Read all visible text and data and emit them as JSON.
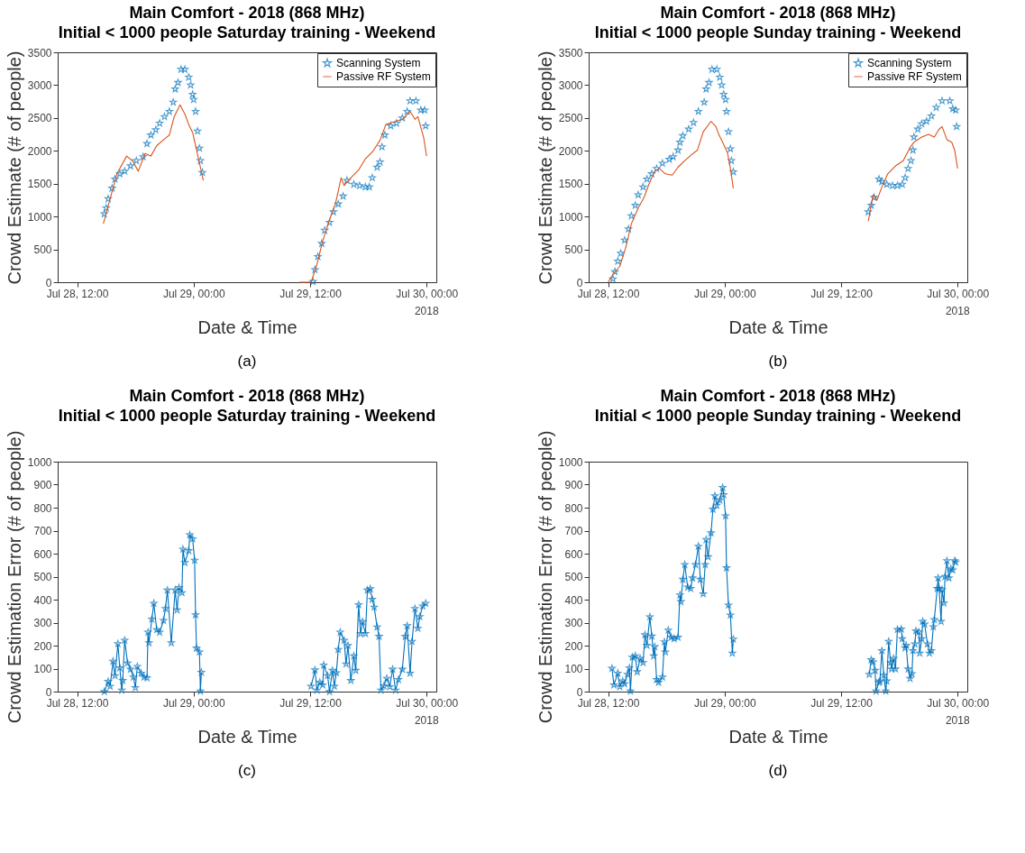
{
  "chart_data": [
    {
      "type": "line",
      "title": "Main Comfort - 2018 (868 MHz)",
      "subtitle": "Initial < 1000 people Saturday training - Weekend",
      "xlabel": "Date & Time",
      "ylabel": "Crowd Estimate (# of people)",
      "annotations": [
        "2018",
        "(a)"
      ],
      "xlim": [
        "2018-07-28T10:00",
        "2018-07-30T01:00"
      ],
      "xticks": [
        {
          "value": "2018-07-28T12:00",
          "label": "Jul 28, 12:00"
        },
        {
          "value": "2018-07-29T00:00",
          "label": "Jul 29, 00:00"
        },
        {
          "value": "2018-07-29T12:00",
          "label": "Jul 29, 12:00"
        },
        {
          "value": "2018-07-30T00:00",
          "label": "Jul 30, 00:00"
        }
      ],
      "ylim": [
        0,
        3500
      ],
      "yticks": [
        0,
        500,
        1000,
        1500,
        2000,
        2500,
        3000,
        3500
      ],
      "legend": "top right",
      "marker": "star",
      "series": [
        {
          "name": "Scanning System",
          "type": "scatter",
          "color": "#0072bd",
          "x": [
            "2018-07-28T14:48",
            "2018-07-28T15:00",
            "2018-07-28T15:12",
            "2018-07-28T15:36",
            "2018-07-28T15:54",
            "2018-07-28T16:24",
            "2018-07-28T16:54",
            "2018-07-28T17:30",
            "2018-07-28T18:06",
            "2018-07-28T18:48",
            "2018-07-28T19:12",
            "2018-07-28T19:36",
            "2018-07-28T20:06",
            "2018-07-28T20:30",
            "2018-07-28T21:00",
            "2018-07-28T21:30",
            "2018-07-28T21:54",
            "2018-07-28T22:06",
            "2018-07-28T22:24",
            "2018-07-28T22:42",
            "2018-07-28T23:06",
            "2018-07-28T23:30",
            "2018-07-28T23:42",
            "2018-07-28T23:54",
            "2018-07-29T00:00",
            "2018-07-29T00:12",
            "2018-07-29T00:24",
            "2018-07-29T00:36",
            "2018-07-29T00:42",
            "2018-07-29T00:54",
            "2018-07-29T06:00",
            "2018-07-29T12:18",
            "2018-07-29T12:30",
            "2018-07-29T12:48",
            "2018-07-29T13:12",
            "2018-07-29T13:30",
            "2018-07-29T14:00",
            "2018-07-29T14:24",
            "2018-07-29T14:54",
            "2018-07-29T15:24",
            "2018-07-29T15:48",
            "2018-07-29T16:30",
            "2018-07-29T17:06",
            "2018-07-29T17:42",
            "2018-07-29T18:06",
            "2018-07-29T18:24",
            "2018-07-29T18:54",
            "2018-07-29T19:12",
            "2018-07-29T19:24",
            "2018-07-29T19:42",
            "2018-07-29T20:18",
            "2018-07-29T20:54",
            "2018-07-29T21:30",
            "2018-07-29T22:00",
            "2018-07-29T22:18",
            "2018-07-29T22:54",
            "2018-07-29T23:24",
            "2018-07-29T23:48",
            "2018-07-29T23:54"
          ],
          "values": [
            1040,
            1130,
            1270,
            1430,
            1570,
            1650,
            1690,
            1770,
            1850,
            1910,
            2110,
            2240,
            2320,
            2420,
            2520,
            2600,
            2740,
            2940,
            3040,
            3240,
            3240,
            3120,
            3000,
            2860,
            2780,
            2600,
            2300,
            2040,
            1850,
            1670,
            null,
            10,
            190,
            390,
            590,
            790,
            910,
            1070,
            1190,
            1310,
            1550,
            1490,
            1470,
            1450,
            1450,
            1590,
            1750,
            1830,
            2060,
            2240,
            2380,
            2420,
            2500,
            2600,
            2760,
            2760,
            2620,
            2620,
            2380
          ]
        },
        {
          "name": "Passive RF System",
          "color": "#d95319",
          "marker": "none",
          "x": [
            "2018-07-28T14:42",
            "2018-07-28T16:06",
            "2018-07-28T17:06",
            "2018-07-28T17:42",
            "2018-07-28T18:18",
            "2018-07-28T19:00",
            "2018-07-28T19:36",
            "2018-07-28T20:12",
            "2018-07-28T21:00",
            "2018-07-28T21:30",
            "2018-07-28T22:00",
            "2018-07-28T22:36",
            "2018-07-28T23:06",
            "2018-07-28T23:30",
            "2018-07-28T23:54",
            "2018-07-29T00:12",
            "2018-07-29T00:42",
            "2018-07-29T01:00",
            "2018-07-29T06:00",
            "2018-07-29T10:54",
            "2018-07-29T12:06",
            "2018-07-29T12:42",
            "2018-07-29T13:18",
            "2018-07-29T14:00",
            "2018-07-29T14:36",
            "2018-07-29T15:12",
            "2018-07-29T15:30",
            "2018-07-29T16:12",
            "2018-07-29T17:00",
            "2018-07-29T17:42",
            "2018-07-29T18:30",
            "2018-07-29T19:12",
            "2018-07-29T19:48",
            "2018-07-29T20:36",
            "2018-07-29T21:30",
            "2018-07-29T22:18",
            "2018-07-29T22:48",
            "2018-07-29T23:06",
            "2018-07-29T23:24",
            "2018-07-29T23:42",
            "2018-07-30T00:00"
          ],
          "values": [
            890,
            1650,
            1920,
            1850,
            1690,
            1960,
            1920,
            2080,
            2180,
            2240,
            2520,
            2700,
            2560,
            2400,
            2280,
            2080,
            1750,
            1550,
            null,
            0,
            0,
            270,
            630,
            950,
            1190,
            1590,
            1470,
            1590,
            1710,
            1880,
            2000,
            2160,
            2400,
            2440,
            2480,
            2600,
            2480,
            2520,
            2360,
            2200,
            1920
          ]
        }
      ]
    },
    {
      "type": "line",
      "title": "Main Comfort - 2018 (868 MHz)",
      "subtitle": "Initial < 1000 people Sunday training - Weekend",
      "xlabel": "Date & Time",
      "ylabel": "Crowd Estimate (# of people)",
      "annotations": [
        "2018",
        "(b)"
      ],
      "xlim": [
        "2018-07-28T10:00",
        "2018-07-30T01:00"
      ],
      "xticks": [
        {
          "value": "2018-07-28T12:00",
          "label": "Jul 28, 12:00"
        },
        {
          "value": "2018-07-29T00:00",
          "label": "Jul 29, 00:00"
        },
        {
          "value": "2018-07-29T12:00",
          "label": "Jul 29, 12:00"
        },
        {
          "value": "2018-07-30T00:00",
          "label": "Jul 30, 00:00"
        }
      ],
      "ylim": [
        0,
        3500
      ],
      "yticks": [
        0,
        500,
        1000,
        1500,
        2000,
        2500,
        3000,
        3500
      ],
      "legend": "top right",
      "marker": "star",
      "series": [
        {
          "name": "Scanning System",
          "type": "scatter",
          "color": "#0072bd",
          "x": [
            "2018-07-28T12:30",
            "2018-07-28T12:42",
            "2018-07-28T13:00",
            "2018-07-28T13:18",
            "2018-07-28T13:42",
            "2018-07-28T14:06",
            "2018-07-28T14:24",
            "2018-07-28T14:48",
            "2018-07-28T15:06",
            "2018-07-28T15:36",
            "2018-07-28T16:00",
            "2018-07-28T16:30",
            "2018-07-28T17:00",
            "2018-07-28T17:36",
            "2018-07-28T18:18",
            "2018-07-28T18:42",
            "2018-07-28T19:12",
            "2018-07-28T19:24",
            "2018-07-28T19:42",
            "2018-07-28T20:18",
            "2018-07-28T20:48",
            "2018-07-28T21:18",
            "2018-07-28T21:54",
            "2018-07-28T22:06",
            "2018-07-28T22:24",
            "2018-07-28T22:42",
            "2018-07-28T23:12",
            "2018-07-28T23:30",
            "2018-07-28T23:42",
            "2018-07-28T23:54",
            "2018-07-29T00:06",
            "2018-07-29T00:12",
            "2018-07-29T00:24",
            "2018-07-29T00:36",
            "2018-07-29T00:42",
            "2018-07-29T00:54",
            "2018-07-29T06:00",
            "2018-07-29T14:48",
            "2018-07-29T15:06",
            "2018-07-29T15:24",
            "2018-07-29T15:54",
            "2018-07-29T16:12",
            "2018-07-29T16:42",
            "2018-07-29T17:18",
            "2018-07-29T17:48",
            "2018-07-29T18:18",
            "2018-07-29T18:36",
            "2018-07-29T18:54",
            "2018-07-29T19:12",
            "2018-07-29T19:24",
            "2018-07-29T19:30",
            "2018-07-29T19:54",
            "2018-07-29T20:18",
            "2018-07-29T20:48",
            "2018-07-29T21:18",
            "2018-07-29T21:48",
            "2018-07-29T22:24",
            "2018-07-29T23:12",
            "2018-07-29T23:30",
            "2018-07-29T23:48",
            "2018-07-29T23:54"
          ],
          "values": [
            50,
            160,
            320,
            440,
            640,
            810,
            1010,
            1170,
            1330,
            1450,
            1570,
            1650,
            1730,
            1810,
            1870,
            1910,
            2010,
            2130,
            2230,
            2330,
            2430,
            2600,
            2740,
            2940,
            3040,
            3240,
            3240,
            3120,
            3000,
            2860,
            2780,
            2600,
            2290,
            2030,
            1850,
            1680,
            null,
            1070,
            1170,
            1290,
            1570,
            1530,
            1490,
            1470,
            1470,
            1490,
            1590,
            1730,
            1850,
            2010,
            2210,
            2330,
            2410,
            2450,
            2530,
            2660,
            2760,
            2760,
            2640,
            2620,
            2370
          ]
        },
        {
          "name": "Passive RF System",
          "color": "#d95319",
          "marker": "none",
          "x": [
            "2018-07-28T12:00",
            "2018-07-28T12:30",
            "2018-07-28T13:12",
            "2018-07-28T13:48",
            "2018-07-28T14:24",
            "2018-07-28T15:06",
            "2018-07-28T15:42",
            "2018-07-28T16:12",
            "2018-07-28T16:48",
            "2018-07-28T17:18",
            "2018-07-28T17:54",
            "2018-07-28T18:36",
            "2018-07-28T19:12",
            "2018-07-28T19:54",
            "2018-07-28T20:30",
            "2018-07-28T21:12",
            "2018-07-28T21:48",
            "2018-07-28T22:36",
            "2018-07-28T23:06",
            "2018-07-28T23:24",
            "2018-07-28T23:48",
            "2018-07-29T00:18",
            "2018-07-29T00:36",
            "2018-07-29T00:54",
            "2018-07-29T06:00",
            "2018-07-29T14:48",
            "2018-07-29T15:18",
            "2018-07-29T15:42",
            "2018-07-29T16:12",
            "2018-07-29T16:48",
            "2018-07-29T17:36",
            "2018-07-29T18:24",
            "2018-07-29T19:06",
            "2018-07-29T19:30",
            "2018-07-29T20:18",
            "2018-07-29T21:00",
            "2018-07-29T21:36",
            "2018-07-29T22:06",
            "2018-07-29T22:24",
            "2018-07-29T22:54",
            "2018-07-29T23:24",
            "2018-07-29T23:42",
            "2018-07-30T00:00"
          ],
          "values": [
            0,
            120,
            240,
            520,
            890,
            1130,
            1290,
            1490,
            1690,
            1730,
            1650,
            1630,
            1750,
            1850,
            1930,
            2010,
            2290,
            2450,
            2370,
            2250,
            2130,
            1970,
            1730,
            1430,
            null,
            930,
            1330,
            1250,
            1450,
            1650,
            1770,
            1850,
            2050,
            2130,
            2210,
            2250,
            2210,
            2330,
            2370,
            2170,
            2130,
            2010,
            1730
          ]
        }
      ]
    },
    {
      "type": "line",
      "title": "Main Comfort - 2018 (868 MHz)",
      "subtitle": "Initial < 1000 people Saturday training - Weekend",
      "xlabel": "Date & Time",
      "ylabel": "Crowd Estimation Error (# of people)",
      "annotations": [
        "2018",
        "(c)"
      ],
      "xlim": [
        "2018-07-28T10:00",
        "2018-07-30T01:00"
      ],
      "xticks": [
        {
          "value": "2018-07-28T12:00",
          "label": "Jul 28, 12:00"
        },
        {
          "value": "2018-07-29T00:00",
          "label": "Jul 29, 00:00"
        },
        {
          "value": "2018-07-29T12:00",
          "label": "Jul 29, 12:00"
        },
        {
          "value": "2018-07-30T00:00",
          "label": "Jul 30, 00:00"
        }
      ],
      "ylim": [
        0,
        1000
      ],
      "yticks": [
        0,
        100,
        200,
        300,
        400,
        500,
        600,
        700,
        800,
        900,
        1000
      ],
      "marker": "star",
      "series": [
        {
          "color": "#0072bd",
          "x": [
            "2018-07-28T14:48",
            "2018-07-28T15:12",
            "2018-07-28T15:24",
            "2018-07-28T15:42",
            "2018-07-28T15:54",
            "2018-07-28T16:12",
            "2018-07-28T16:24",
            "2018-07-28T16:36",
            "2018-07-28T16:42",
            "2018-07-28T16:54",
            "2018-07-28T17:12",
            "2018-07-28T17:30",
            "2018-07-28T17:48",
            "2018-07-28T18:00",
            "2018-07-28T18:12",
            "2018-07-28T18:36",
            "2018-07-28T18:54",
            "2018-07-28T19:12",
            "2018-07-28T19:18",
            "2018-07-28T19:24",
            "2018-07-28T19:42",
            "2018-07-28T19:54",
            "2018-07-28T20:12",
            "2018-07-28T20:30",
            "2018-07-28T20:54",
            "2018-07-28T21:06",
            "2018-07-28T21:18",
            "2018-07-28T21:42",
            "2018-07-28T22:06",
            "2018-07-28T22:18",
            "2018-07-28T22:30",
            "2018-07-28T22:48",
            "2018-07-28T22:54",
            "2018-07-28T23:06",
            "2018-07-28T23:30",
            "2018-07-28T23:36",
            "2018-07-28T23:54",
            "2018-07-29T00:06",
            "2018-07-29T00:12",
            "2018-07-29T00:18",
            "2018-07-29T00:36",
            "2018-07-29T00:42",
            "2018-07-29T00:48",
            "2018-07-29T06:00",
            "2018-07-29T12:06",
            "2018-07-29T12:30",
            "2018-07-29T12:42",
            "2018-07-29T13:00",
            "2018-07-29T13:18",
            "2018-07-29T13:24",
            "2018-07-29T13:48",
            "2018-07-29T14:00",
            "2018-07-29T14:18",
            "2018-07-29T14:30",
            "2018-07-29T14:42",
            "2018-07-29T14:54",
            "2018-07-29T15:06",
            "2018-07-29T15:30",
            "2018-07-29T15:42",
            "2018-07-29T15:54",
            "2018-07-29T16:12",
            "2018-07-29T16:30",
            "2018-07-29T16:42",
            "2018-07-29T17:00",
            "2018-07-29T17:12",
            "2018-07-29T17:24",
            "2018-07-29T17:42",
            "2018-07-29T17:54",
            "2018-07-29T18:12",
            "2018-07-29T18:24",
            "2018-07-29T18:36",
            "2018-07-29T18:54",
            "2018-07-29T19:06",
            "2018-07-29T19:18",
            "2018-07-29T19:36",
            "2018-07-29T19:54",
            "2018-07-29T20:12",
            "2018-07-29T20:30",
            "2018-07-29T20:48",
            "2018-07-29T21:06",
            "2018-07-29T21:30",
            "2018-07-29T21:48",
            "2018-07-29T22:00",
            "2018-07-29T22:18",
            "2018-07-29T22:30",
            "2018-07-29T22:48",
            "2018-07-29T23:06",
            "2018-07-29T23:18",
            "2018-07-29T23:36",
            "2018-07-29T23:54"
          ],
          "values": [
            0,
            44,
            23,
            132,
            69,
            208,
            103,
            6,
            48,
            223,
            124,
            97,
            63,
            17,
            109,
            80,
            63,
            60,
            258,
            212,
            315,
            384,
            269,
            258,
            309,
            361,
            441,
            212,
            441,
            355,
            452,
            430,
            619,
            561,
            613,
            682,
            664,
            571,
            334,
            189,
            172,
            2,
            84,
            null,
            23,
            94,
            6,
            40,
            29,
            115,
            69,
            0,
            92,
            23,
            82,
            183,
            258,
            223,
            120,
            200,
            48,
            155,
            92,
            378,
            252,
            304,
            252,
            441,
            447,
            401,
            367,
            281,
            240,
            6,
            25,
            57,
            21,
            97,
            6,
            52,
            97,
            240,
            286,
            80,
            218,
            361,
            275,
            326,
            372,
            384
          ]
        }
      ]
    },
    {
      "type": "line",
      "title": "Main Comfort - 2018 (868 MHz)",
      "subtitle": "Initial < 1000 people Sunday training - Weekend",
      "xlabel": "Date & Time",
      "ylabel": "Crowd Estimation Error (# of people)",
      "annotations": [
        "2018",
        "(d)"
      ],
      "xlim": [
        "2018-07-28T10:00",
        "2018-07-30T01:00"
      ],
      "xticks": [
        {
          "value": "2018-07-28T12:00",
          "label": "Jul 28, 12:00"
        },
        {
          "value": "2018-07-29T00:00",
          "label": "Jul 29, 00:00"
        },
        {
          "value": "2018-07-29T12:00",
          "label": "Jul 29, 12:00"
        },
        {
          "value": "2018-07-30T00:00",
          "label": "Jul 30, 00:00"
        }
      ],
      "ylim": [
        0,
        1000
      ],
      "yticks": [
        0,
        100,
        200,
        300,
        400,
        500,
        600,
        700,
        800,
        900,
        1000
      ],
      "marker": "star",
      "series": [
        {
          "color": "#0072bd",
          "x": [
            "2018-07-28T12:24",
            "2018-07-28T12:36",
            "2018-07-28T13:00",
            "2018-07-28T13:12",
            "2018-07-28T13:30",
            "2018-07-28T13:42",
            "2018-07-28T14:00",
            "2018-07-28T14:12",
            "2018-07-28T14:18",
            "2018-07-28T14:30",
            "2018-07-28T14:48",
            "2018-07-28T15:00",
            "2018-07-28T15:18",
            "2018-07-28T15:36",
            "2018-07-28T15:48",
            "2018-07-28T16:00",
            "2018-07-28T16:18",
            "2018-07-28T16:30",
            "2018-07-28T16:42",
            "2018-07-28T16:48",
            "2018-07-28T17:00",
            "2018-07-28T17:12",
            "2018-07-28T17:36",
            "2018-07-28T17:48",
            "2018-07-28T17:54",
            "2018-07-28T18:12",
            "2018-07-28T18:30",
            "2018-07-28T18:48",
            "2018-07-28T19:12",
            "2018-07-28T19:24",
            "2018-07-28T19:30",
            "2018-07-28T19:42",
            "2018-07-28T19:54",
            "2018-07-28T20:12",
            "2018-07-28T20:30",
            "2018-07-28T20:42",
            "2018-07-28T21:00",
            "2018-07-28T21:18",
            "2018-07-28T21:30",
            "2018-07-28T21:48",
            "2018-07-28T22:00",
            "2018-07-28T22:06",
            "2018-07-28T22:18",
            "2018-07-28T22:36",
            "2018-07-28T22:48",
            "2018-07-28T23:00",
            "2018-07-28T23:12",
            "2018-07-28T23:30",
            "2018-07-28T23:48",
            "2018-07-28T23:54",
            "2018-07-29T00:06",
            "2018-07-29T00:12",
            "2018-07-29T00:24",
            "2018-07-29T00:36",
            "2018-07-29T00:48",
            "2018-07-29T00:54",
            "2018-07-29T06:00",
            "2018-07-29T14:54",
            "2018-07-29T15:06",
            "2018-07-29T15:18",
            "2018-07-29T15:30",
            "2018-07-29T15:36",
            "2018-07-29T15:54",
            "2018-07-29T16:00",
            "2018-07-29T16:12",
            "2018-07-29T16:24",
            "2018-07-29T16:36",
            "2018-07-29T16:42",
            "2018-07-29T16:54",
            "2018-07-29T17:06",
            "2018-07-29T17:12",
            "2018-07-29T17:24",
            "2018-07-29T17:36",
            "2018-07-29T17:48",
            "2018-07-29T18:12",
            "2018-07-29T18:18",
            "2018-07-29T18:36",
            "2018-07-29T18:42",
            "2018-07-29T18:54",
            "2018-07-29T19:06",
            "2018-07-29T19:18",
            "2018-07-29T19:24",
            "2018-07-29T19:36",
            "2018-07-29T19:42",
            "2018-07-29T20:00",
            "2018-07-29T20:06",
            "2018-07-29T20:18",
            "2018-07-29T20:24",
            "2018-07-29T20:36",
            "2018-07-29T20:54",
            "2018-07-29T21:06",
            "2018-07-29T21:18",
            "2018-07-29T21:30",
            "2018-07-29T21:36",
            "2018-07-29T21:54",
            "2018-07-29T22:00",
            "2018-07-29T22:06",
            "2018-07-29T22:18",
            "2018-07-29T22:24",
            "2018-07-29T22:36",
            "2018-07-29T22:42",
            "2018-07-29T22:54",
            "2018-07-29T23:06",
            "2018-07-29T23:18",
            "2018-07-29T23:30",
            "2018-07-29T23:42",
            "2018-07-29T23:48"
          ],
          "values": [
            101,
            29,
            80,
            21,
            46,
            34,
            75,
            103,
            2,
            149,
            155,
            86,
            144,
            126,
            247,
            201,
            325,
            241,
            155,
            195,
            52,
            40,
            63,
            216,
            172,
            267,
            236,
            230,
            236,
            420,
            391,
            488,
            552,
            454,
            448,
            494,
            552,
            632,
            488,
            425,
            552,
            661,
            586,
            690,
            793,
            851,
            810,
            833,
            887,
            856,
            764,
            538,
            376,
            333,
            167,
            228,
            null,
            75,
            138,
            129,
            92,
            2,
            40,
            46,
            178,
            71,
            2,
            46,
            218,
            126,
            98,
            144,
            98,
            270,
            272,
            230,
            190,
            201,
            98,
            57,
            78,
            178,
            207,
            264,
            259,
            167,
            230,
            305,
            293,
            207,
            167,
            178,
            282,
            313,
            448,
            494,
            448,
            305,
            443,
            385,
            500,
            569,
            494,
            534,
            529,
            569,
            563
          ]
        }
      ]
    }
  ]
}
